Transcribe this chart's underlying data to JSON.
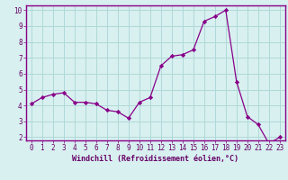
{
  "x": [
    0,
    1,
    2,
    3,
    4,
    5,
    6,
    7,
    8,
    9,
    10,
    11,
    12,
    13,
    14,
    15,
    16,
    17,
    18,
    19,
    20,
    21,
    22,
    23
  ],
  "y": [
    4.1,
    4.5,
    4.7,
    4.8,
    4.2,
    4.2,
    4.1,
    3.7,
    3.6,
    3.2,
    4.2,
    4.5,
    6.5,
    7.1,
    7.2,
    7.5,
    9.3,
    9.6,
    10.0,
    5.5,
    3.3,
    2.8,
    1.6,
    2.0
  ],
  "line_color": "#880088",
  "marker": "D",
  "marker_size": 2.2,
  "bg_color": "#d8f0f0",
  "grid_color": "#b0d8d8",
  "ylim": [
    1.8,
    10.3
  ],
  "xlim": [
    -0.5,
    23.5
  ],
  "yticks": [
    2,
    3,
    4,
    5,
    6,
    7,
    8,
    9,
    10
  ],
  "xticks": [
    0,
    1,
    2,
    3,
    4,
    5,
    6,
    7,
    8,
    9,
    10,
    11,
    12,
    13,
    14,
    15,
    16,
    17,
    18,
    19,
    20,
    21,
    22,
    23
  ],
  "xlabel": "Windchill (Refroidissement éolien,°C)",
  "tick_color": "#660066",
  "spine_color": "#880088",
  "tick_fontsize": 5.5,
  "xlabel_fontsize": 6.0
}
